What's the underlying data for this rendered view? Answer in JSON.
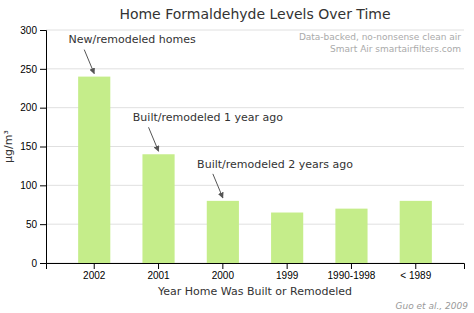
{
  "chart_data": {
    "type": "bar",
    "title": "Home Formaldehyde Levels Over Time",
    "xlabel": "Year Home Was Built or Remodeled",
    "ylabel": "μg/m³",
    "categories": [
      "2002",
      "2001",
      "2000",
      "1999",
      "1990-1998",
      "< 1989"
    ],
    "values": [
      240,
      140,
      80,
      65,
      70,
      80
    ],
    "color": "#c5ed8a",
    "ylim": [
      0,
      300
    ],
    "yticks": [
      0,
      50,
      100,
      150,
      200,
      250,
      300
    ],
    "grid": true,
    "annotations": [
      {
        "text": "New/remodeled homes",
        "category": "2002"
      },
      {
        "text": "Built/remodeled 1 year ago",
        "category": "2001"
      },
      {
        "text": "Built/remodeled 2 years ago",
        "category": "2000"
      }
    ],
    "watermark": [
      "Data-backed, no-nonsense clean air",
      "Smart Air smartairfilters.com"
    ],
    "source": "Guo et al., 2009"
  }
}
